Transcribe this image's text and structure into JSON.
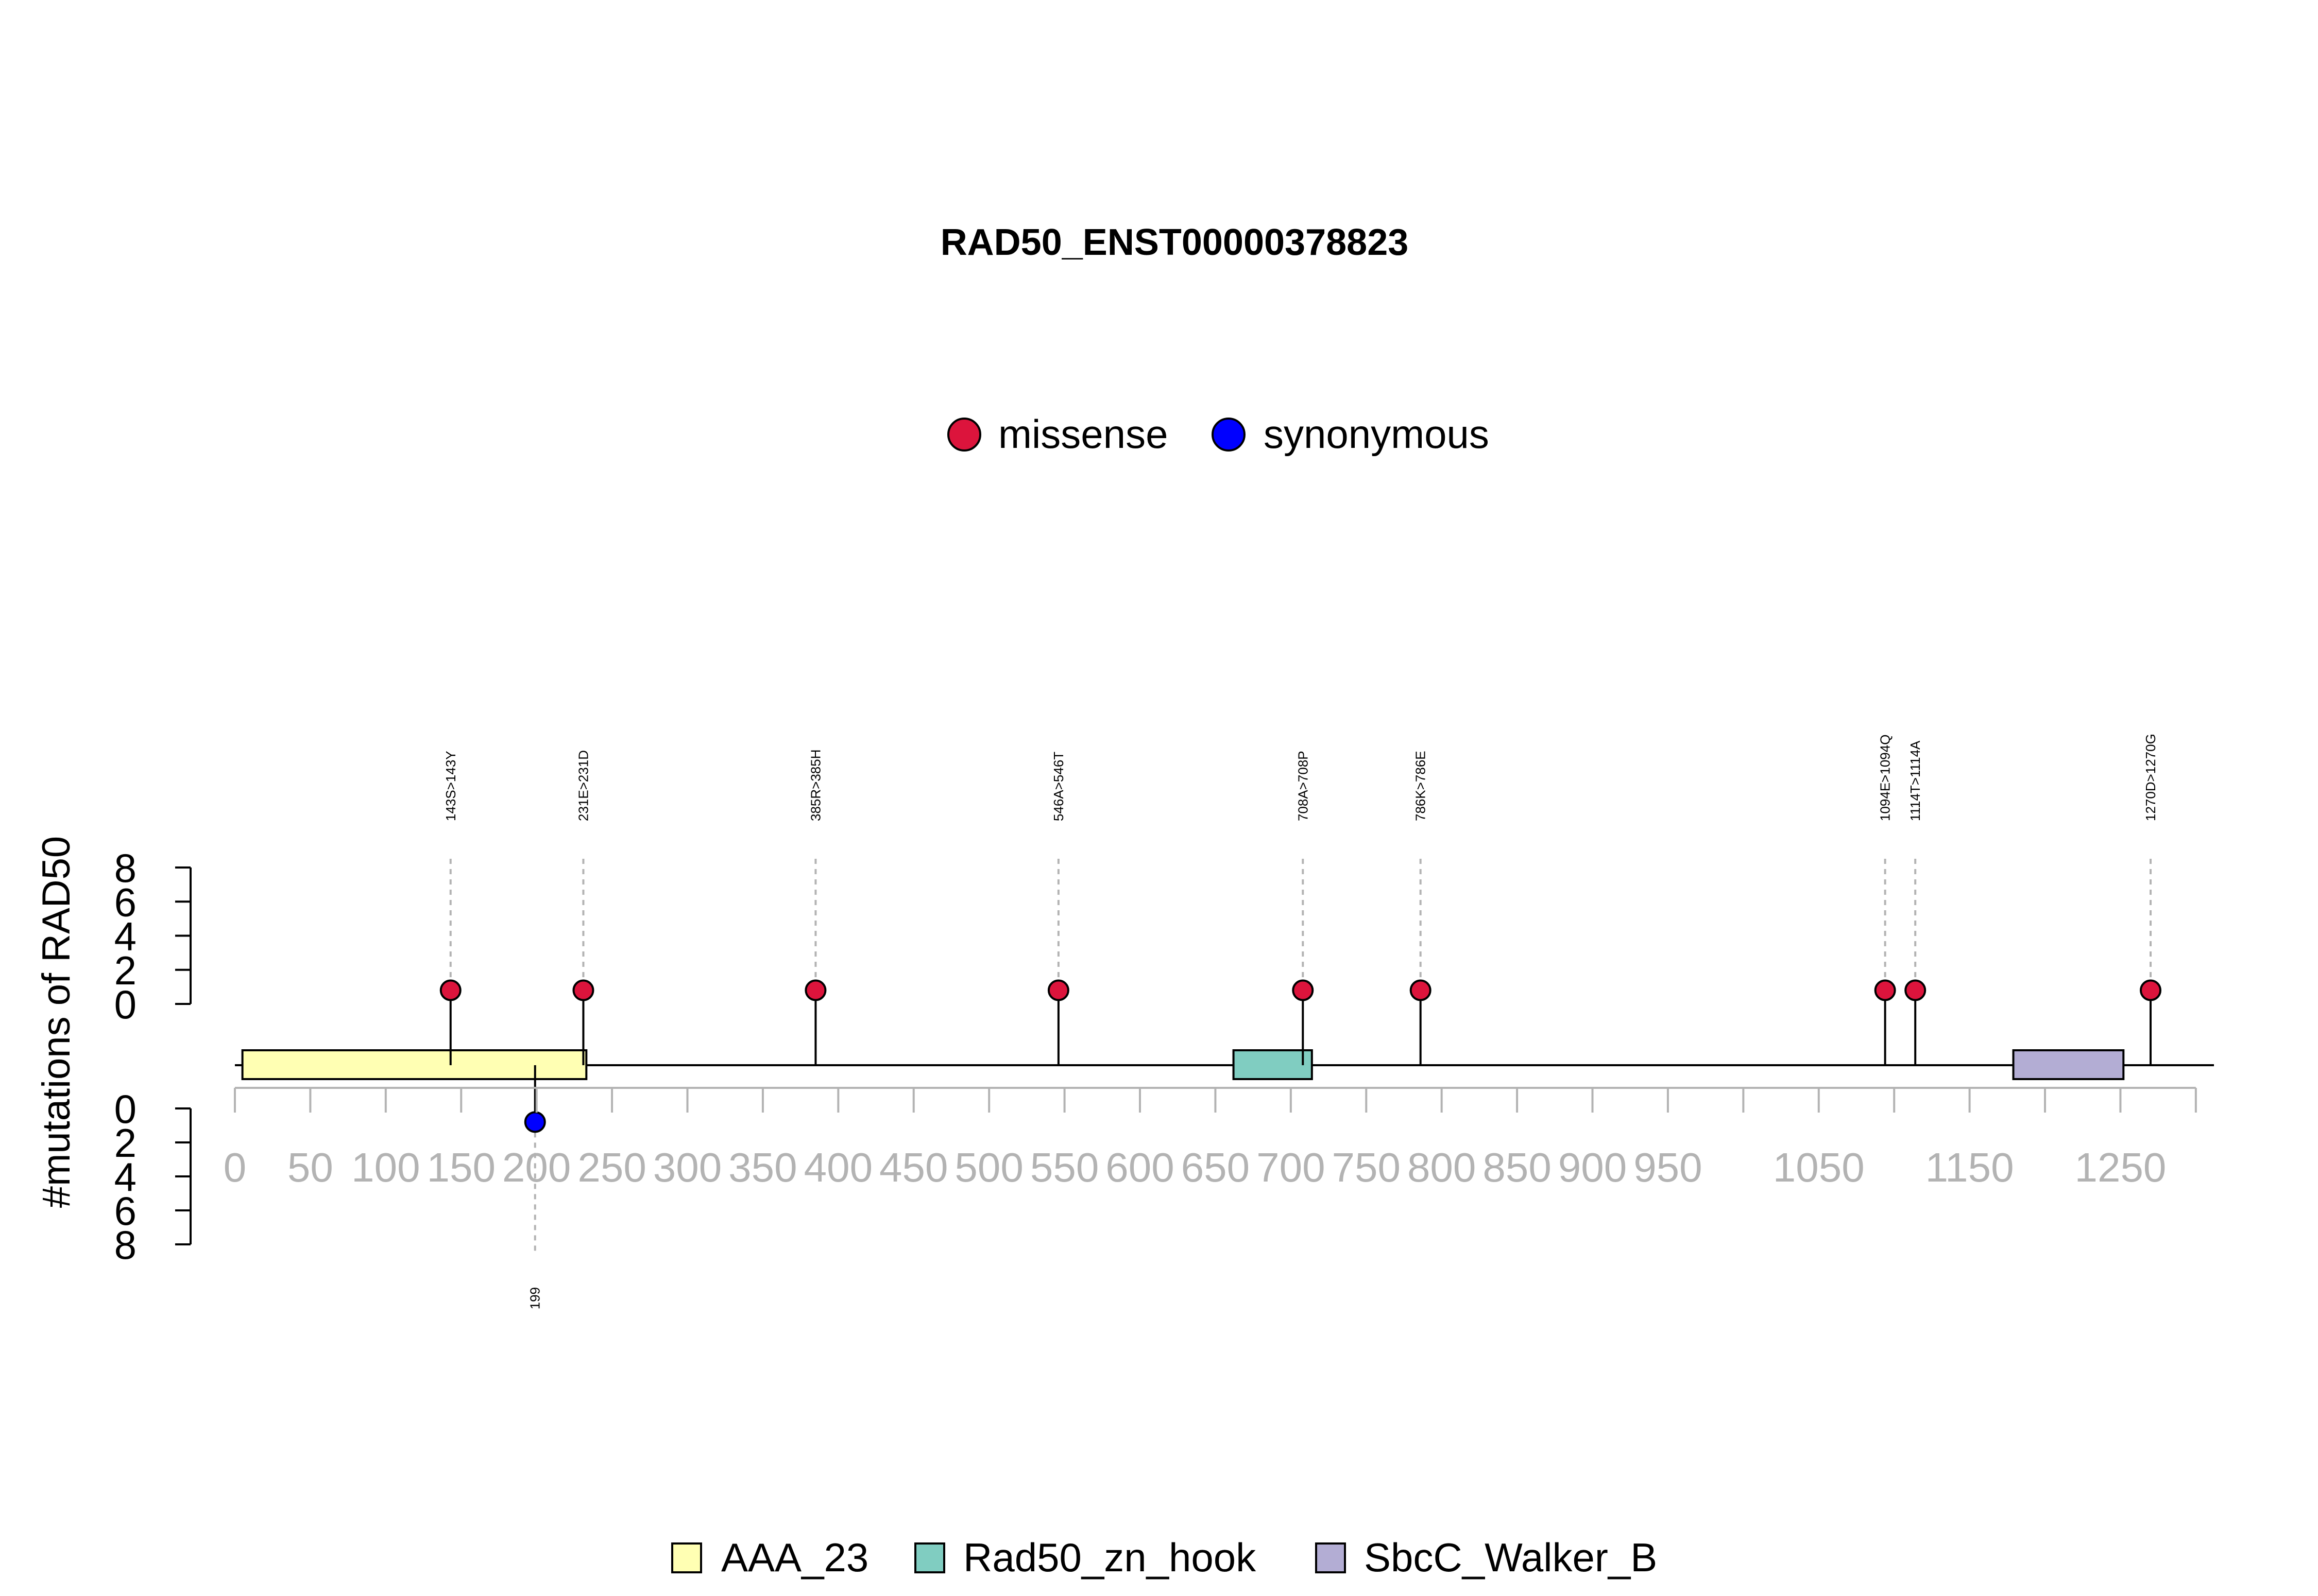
{
  "chart_data": {
    "type": "lollipop",
    "title": "RAD50_ENST00000378823",
    "ylabel": "#mutations of RAD50",
    "protein_length": 1312,
    "xlim": [
      0,
      1312
    ],
    "x_ticks": [
      0,
      50,
      100,
      150,
      200,
      250,
      300,
      350,
      400,
      450,
      500,
      550,
      600,
      650,
      700,
      750,
      800,
      850,
      900,
      950,
      1000,
      1050,
      1100,
      1150,
      1200,
      1250,
      1300
    ],
    "x_tick_labels": [
      "0",
      "50",
      "100",
      "150",
      "200",
      "250",
      "300",
      "350",
      "400",
      "450",
      "500",
      "550",
      "600",
      "650",
      "700",
      "750",
      "800",
      "850",
      "900",
      "950",
      "1050",
      "1150",
      "1250"
    ],
    "x_tick_label_positions": [
      0,
      50,
      100,
      150,
      200,
      250,
      300,
      350,
      400,
      450,
      500,
      550,
      600,
      650,
      700,
      750,
      800,
      850,
      900,
      950,
      1050,
      1150,
      1250
    ],
    "y_ticks_top": [
      "0",
      "2",
      "4",
      "6",
      "8"
    ],
    "y_ticks_bottom": [
      "0",
      "2",
      "4",
      "6",
      "8"
    ],
    "ylim": [
      0,
      8
    ],
    "mutation_legend": [
      {
        "name": "missense",
        "color": "#DC143C"
      },
      {
        "name": "synonymous",
        "color": "#0000FF"
      }
    ],
    "domain_legend": [
      {
        "name": "AAA_23",
        "color": "#FFFFB3"
      },
      {
        "name": "Rad50_zn_hook",
        "color": "#80CDC1"
      },
      {
        "name": "SbcC_Walker_B",
        "color": "#B3ADD4"
      }
    ],
    "domains": [
      {
        "name": "AAA_23",
        "start": 5,
        "end": 233,
        "color": "#FFFFB3"
      },
      {
        "name": "Rad50_zn_hook",
        "start": 662,
        "end": 714,
        "color": "#80CDC1"
      },
      {
        "name": "SbcC_Walker_B",
        "start": 1179,
        "end": 1252,
        "color": "#B3ADD4"
      }
    ],
    "mutations_top": [
      {
        "position": 143,
        "label": "143S>143Y",
        "count": 1,
        "type": "missense",
        "color": "#DC143C"
      },
      {
        "position": 231,
        "label": "231E>231D",
        "count": 1,
        "type": "missense",
        "color": "#DC143C"
      },
      {
        "position": 385,
        "label": "385R>385H",
        "count": 1,
        "type": "missense",
        "color": "#DC143C"
      },
      {
        "position": 546,
        "label": "546A>546T",
        "count": 1,
        "type": "missense",
        "color": "#DC143C"
      },
      {
        "position": 708,
        "label": "708A>708P",
        "count": 1,
        "type": "missense",
        "color": "#DC143C"
      },
      {
        "position": 786,
        "label": "786K>786E",
        "count": 1,
        "type": "missense",
        "color": "#DC143C"
      },
      {
        "position": 1094,
        "label": "1094E>1094Q",
        "count": 1,
        "type": "missense",
        "color": "#DC143C"
      },
      {
        "position": 1114,
        "label": "1114T>1114A",
        "count": 1,
        "type": "missense",
        "color": "#DC143C"
      },
      {
        "position": 1270,
        "label": "1270D>1270G",
        "count": 1,
        "type": "missense",
        "color": "#DC143C"
      }
    ],
    "mutations_bottom": [
      {
        "position": 199,
        "label": "199",
        "count": 1,
        "type": "synonymous",
        "color": "#0000FF"
      }
    ]
  }
}
